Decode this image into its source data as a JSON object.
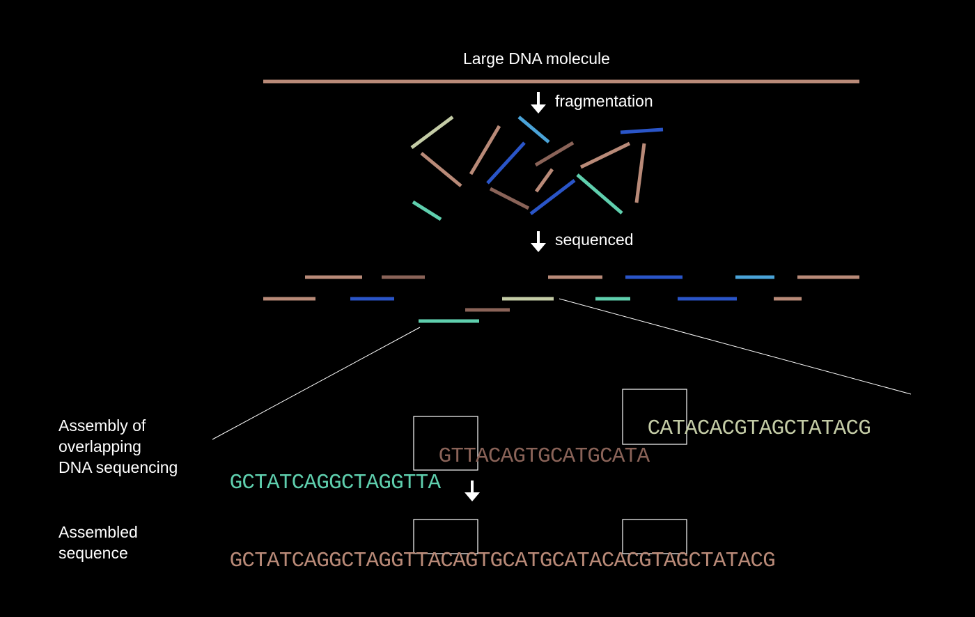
{
  "labels": {
    "title": "Large DNA molecule",
    "step1": "fragmentation",
    "step2": "sequenced",
    "assembly_line1": "Assembly of",
    "assembly_line2": "overlapping",
    "assembly_line3": "DNA sequencing",
    "assembled_line1": "Assembled",
    "assembled_line2": "sequence"
  },
  "reads": {
    "read3_overlap": "CATA",
    "read3_rest": "CACGTAGCTATACG",
    "read2_overlap_a": "GTTA",
    "read2_mid": "CAGTGCATG",
    "read2_overlap_b": "CATA",
    "read1_start": "GCTATCAGGCTAG",
    "read1_overlap": "GTTA"
  },
  "assembled": {
    "part1": "GCTATCAGGCTAG",
    "overlap1": "GTTA",
    "part2": "CAGTGCATG",
    "overlap2": "CATA",
    "part3": "CACGTAGCTATACG"
  },
  "colors": {
    "salmon": "#b98a78",
    "brown": "#8a6358",
    "blue": "#2a55c8",
    "lightblue": "#4aa3d8",
    "teal": "#5fcfae",
    "sage": "#c4cca6"
  }
}
